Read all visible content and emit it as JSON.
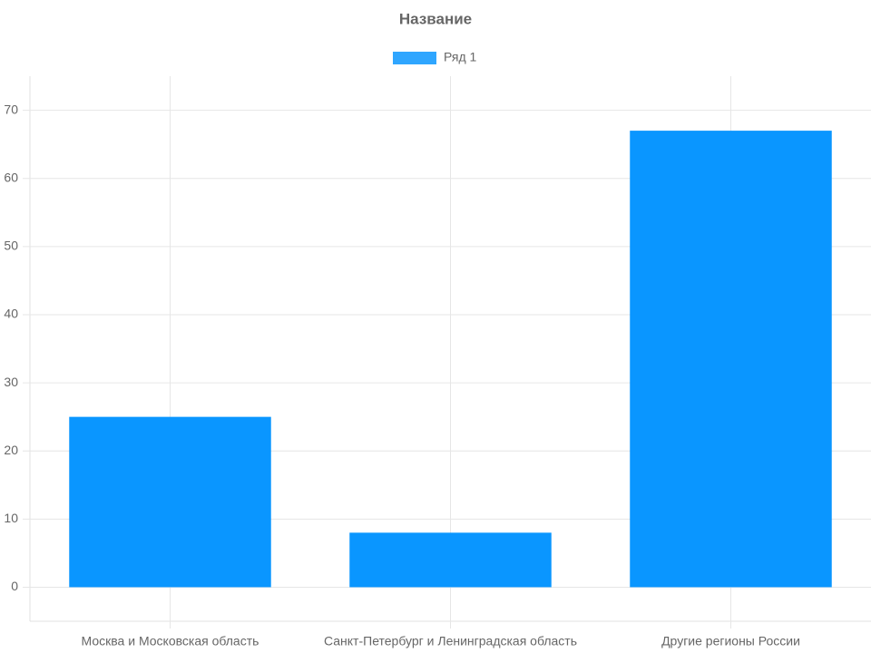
{
  "chart_data": {
    "type": "bar",
    "title": "Название",
    "categories": [
      "Москва и Московская область",
      "Санкт-Петербург и Ленинградская область",
      "Другие регионы России"
    ],
    "series": [
      {
        "name": "Ряд 1",
        "color": "#0a96ff",
        "values": [
          25,
          8,
          67
        ]
      }
    ],
    "ylim": [
      -5,
      75
    ],
    "yticks": [
      0,
      10,
      20,
      30,
      40,
      50,
      60,
      70
    ],
    "grid": true,
    "legend": "top"
  }
}
